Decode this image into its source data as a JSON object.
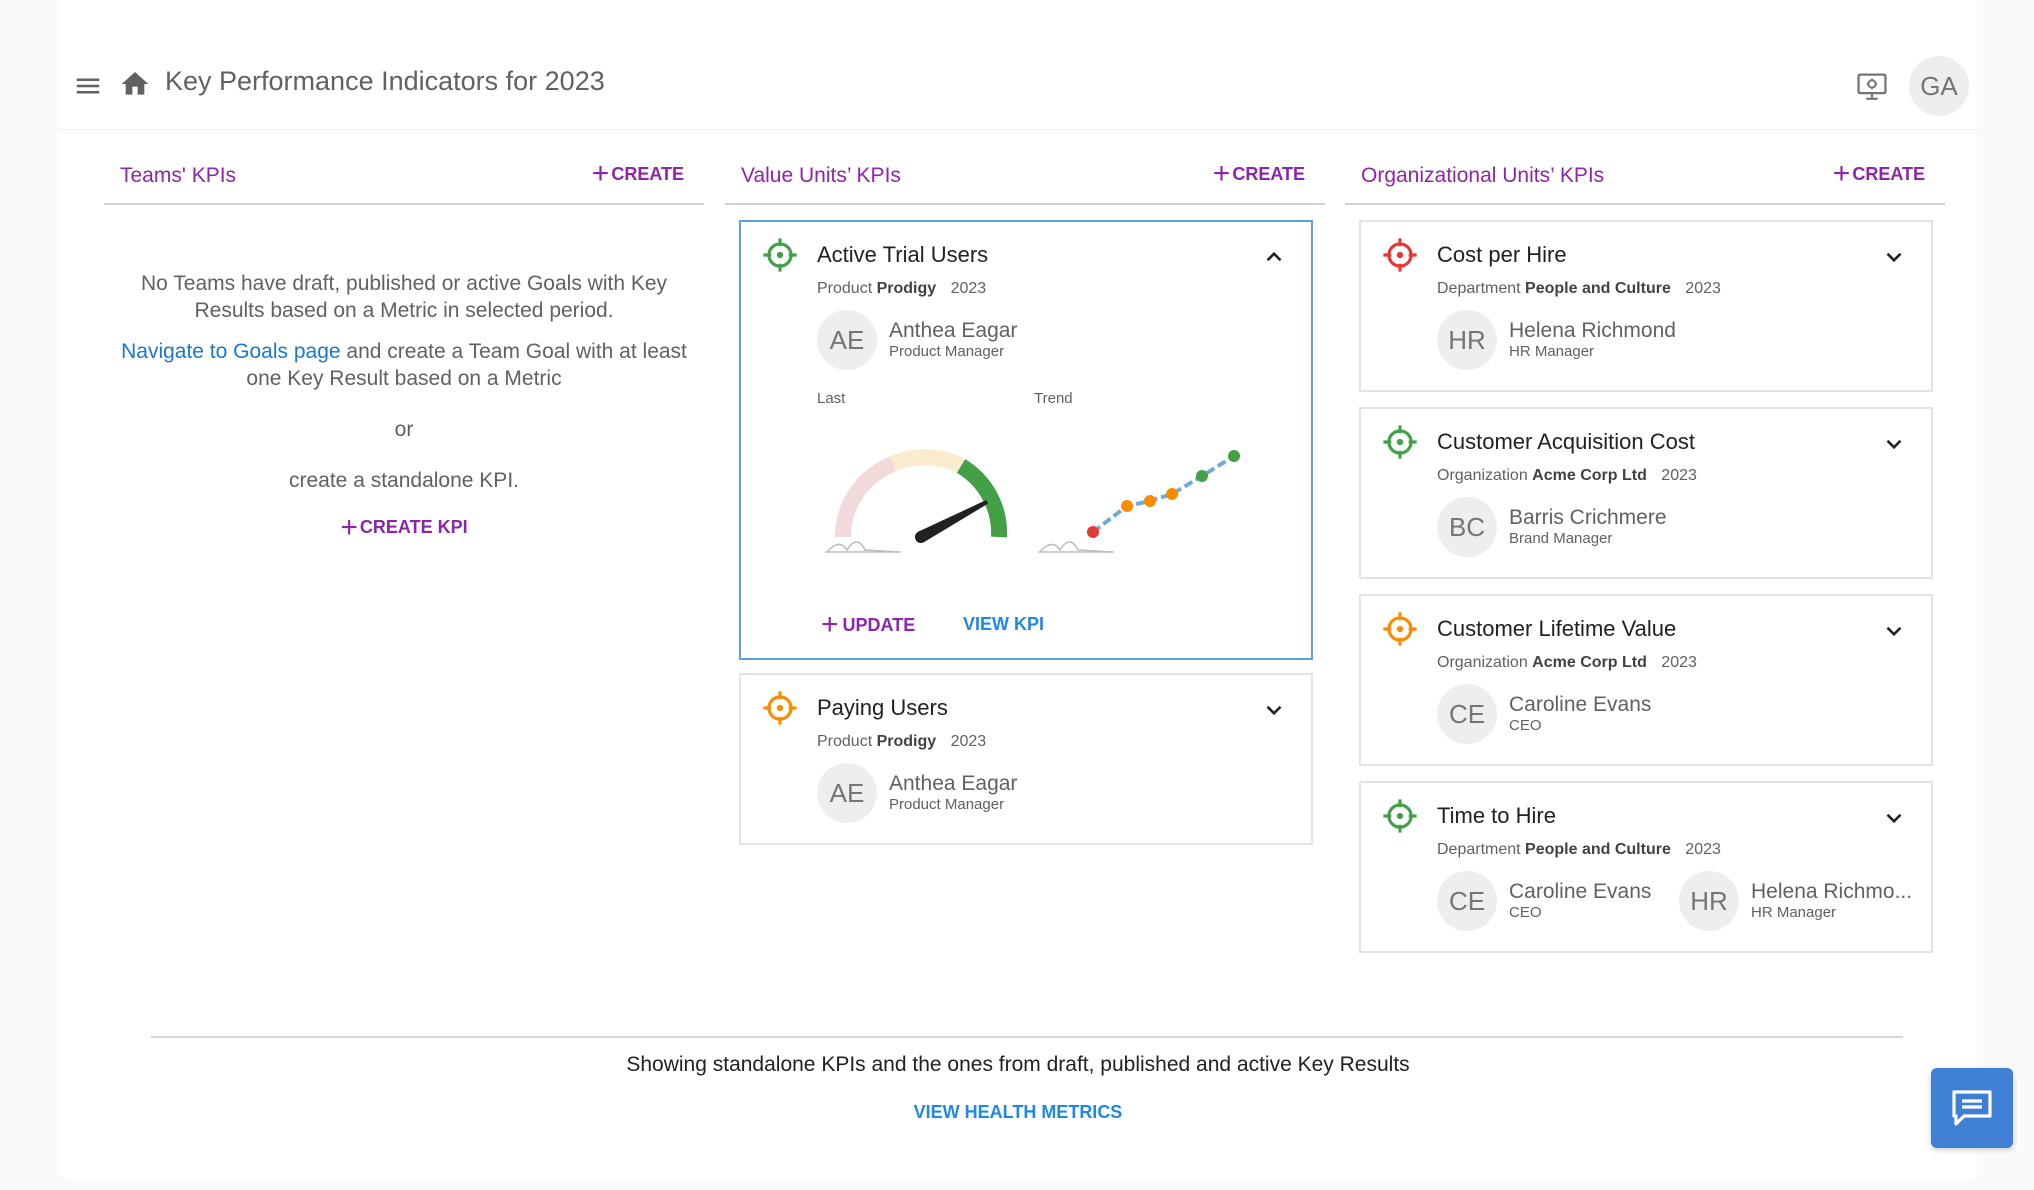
{
  "header": {
    "title": "Key Performance Indicators for 2023",
    "avatar_initials": "GA"
  },
  "columns": {
    "teams": {
      "title": "Teams' KPIs",
      "create_label": "CREATE",
      "empty_text": "No Teams have draft, published or active Goals with Key Results based on a Metric in selected period.",
      "navigate_link": "Navigate to Goals page",
      "navigate_rest": " and create a Team Goal with at least one Key Result based on a Metric",
      "or_text": "or",
      "standalone_text": "create a standalone KPI.",
      "create_kpi_label": "CREATE KPI"
    },
    "value_units": {
      "title": "Value Units’ KPIs",
      "create_label": "CREATE",
      "cards": [
        {
          "title": "Active Trial Users",
          "meta_type": "Product",
          "meta_name": "Prodigy",
          "year": "2023",
          "status_color": "#43a047",
          "expanded": true,
          "people": [
            {
              "initials": "AE",
              "name": "Anthea Eagar",
              "role": "Product Manager"
            }
          ],
          "last_label": "Last",
          "trend_label": "Trend",
          "update_label": "UPDATE",
          "view_label": "VIEW KPI",
          "gauge_level": 0.86
        },
        {
          "title": "Paying Users",
          "meta_type": "Product",
          "meta_name": "Prodigy",
          "year": "2023",
          "status_color": "#fb8c00",
          "expanded": false,
          "people": [
            {
              "initials": "AE",
              "name": "Anthea Eagar",
              "role": "Product Manager"
            }
          ]
        }
      ]
    },
    "org_units": {
      "title": "Organizational Units’ KPIs",
      "create_label": "CREATE",
      "cards": [
        {
          "title": "Cost per Hire",
          "meta_type": "Department",
          "meta_name": "People and Culture",
          "year": "2023",
          "status_color": "#e53935",
          "people": [
            {
              "initials": "HR",
              "name": "Helena Richmond",
              "role": "HR Manager"
            }
          ]
        },
        {
          "title": "Customer Acquisition Cost",
          "meta_type": "Organization",
          "meta_name": "Acme Corp Ltd",
          "year": "2023",
          "status_color": "#43a047",
          "people": [
            {
              "initials": "BC",
              "name": "Barris Crichmere",
              "role": "Brand Manager"
            }
          ]
        },
        {
          "title": "Customer Lifetime Value",
          "meta_type": "Organization",
          "meta_name": "Acme Corp Ltd",
          "year": "2023",
          "status_color": "#fb8c00",
          "people": [
            {
              "initials": "CE",
              "name": "Caroline Evans",
              "role": "CEO"
            }
          ]
        },
        {
          "title": "Time to Hire",
          "meta_type": "Department",
          "meta_name": "People and Culture",
          "year": "2023",
          "status_color": "#43a047",
          "people": [
            {
              "initials": "CE",
              "name": "Caroline Evans",
              "role": "CEO"
            },
            {
              "initials": "HR",
              "name": "Helena Richmo...",
              "role": "HR Manager"
            }
          ]
        }
      ]
    }
  },
  "footer": {
    "text": "Showing standalone KPIs and the ones from draft, published and active Key Results",
    "link": "VIEW HEALTH METRICS"
  },
  "colors": {
    "accent_purple": "#8e24aa",
    "link_blue": "#1976d2",
    "chat_blue": "#3f7fd4"
  }
}
